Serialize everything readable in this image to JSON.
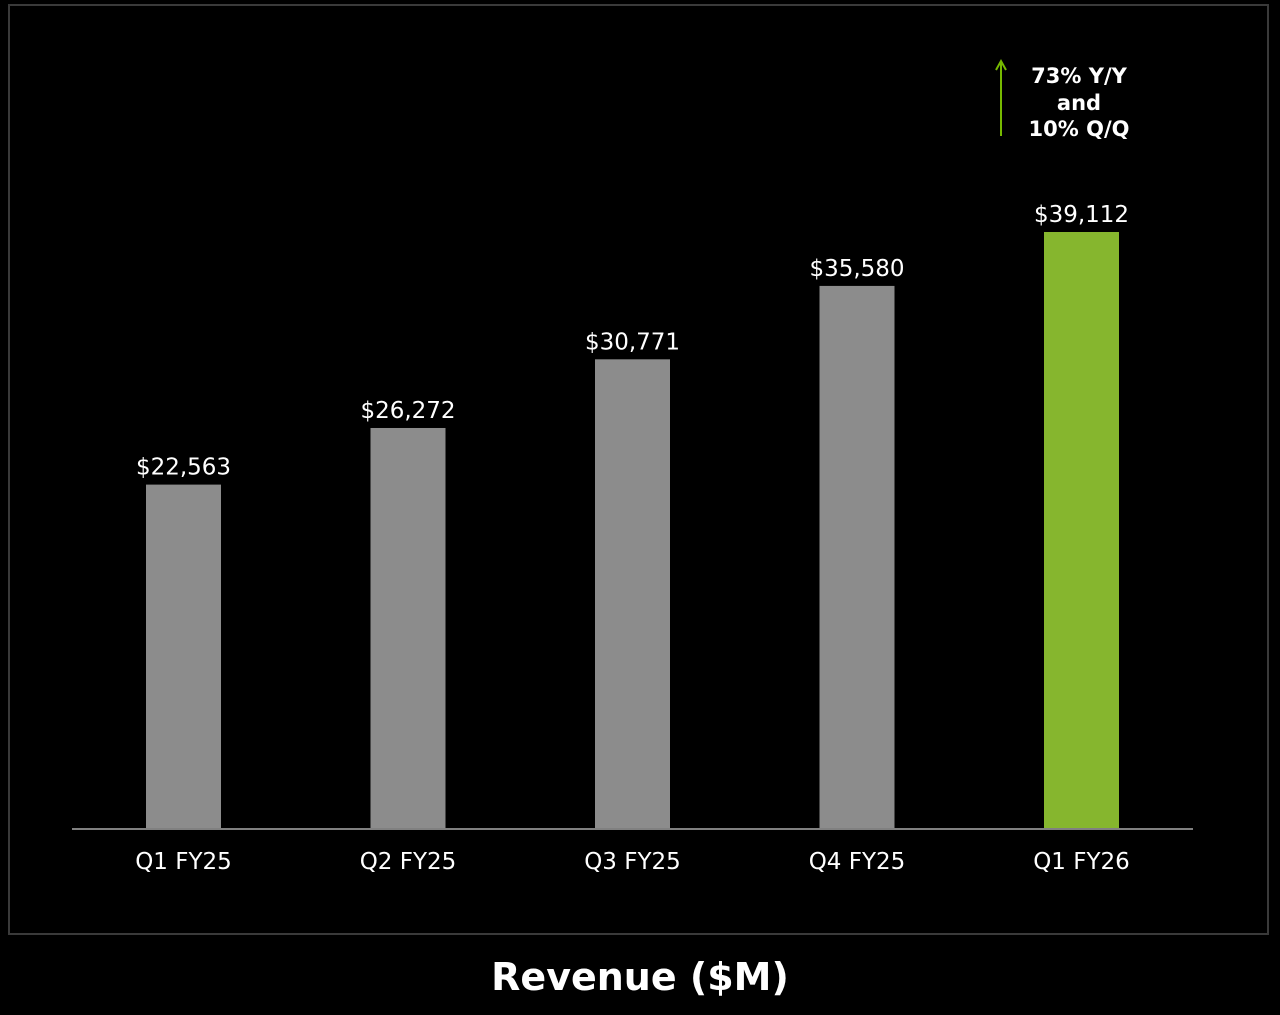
{
  "chart_data": {
    "type": "bar",
    "title": "Revenue ($M)",
    "categories": [
      "Q1 FY25",
      "Q2 FY25",
      "Q3 FY25",
      "Q4 FY25",
      "Q1 FY26"
    ],
    "values": [
      22563,
      26272,
      30771,
      35580,
      39112
    ],
    "value_labels": [
      "$22,563",
      "$26,272",
      "$30,771",
      "$35,580",
      "$39,112"
    ],
    "ylim": [
      0,
      39112
    ],
    "grid": false,
    "colors": {
      "default_bar": "#8c8c8c",
      "highlight_bar": "#86b62e",
      "background": "#000000",
      "text": "#ffffff",
      "axis": "#808080",
      "arrow": "#76b900"
    },
    "highlight_index": 4,
    "annotation": {
      "lines": [
        "73% Y/Y",
        "and",
        "10% Q/Q"
      ],
      "icon": "up-arrow-icon"
    }
  }
}
